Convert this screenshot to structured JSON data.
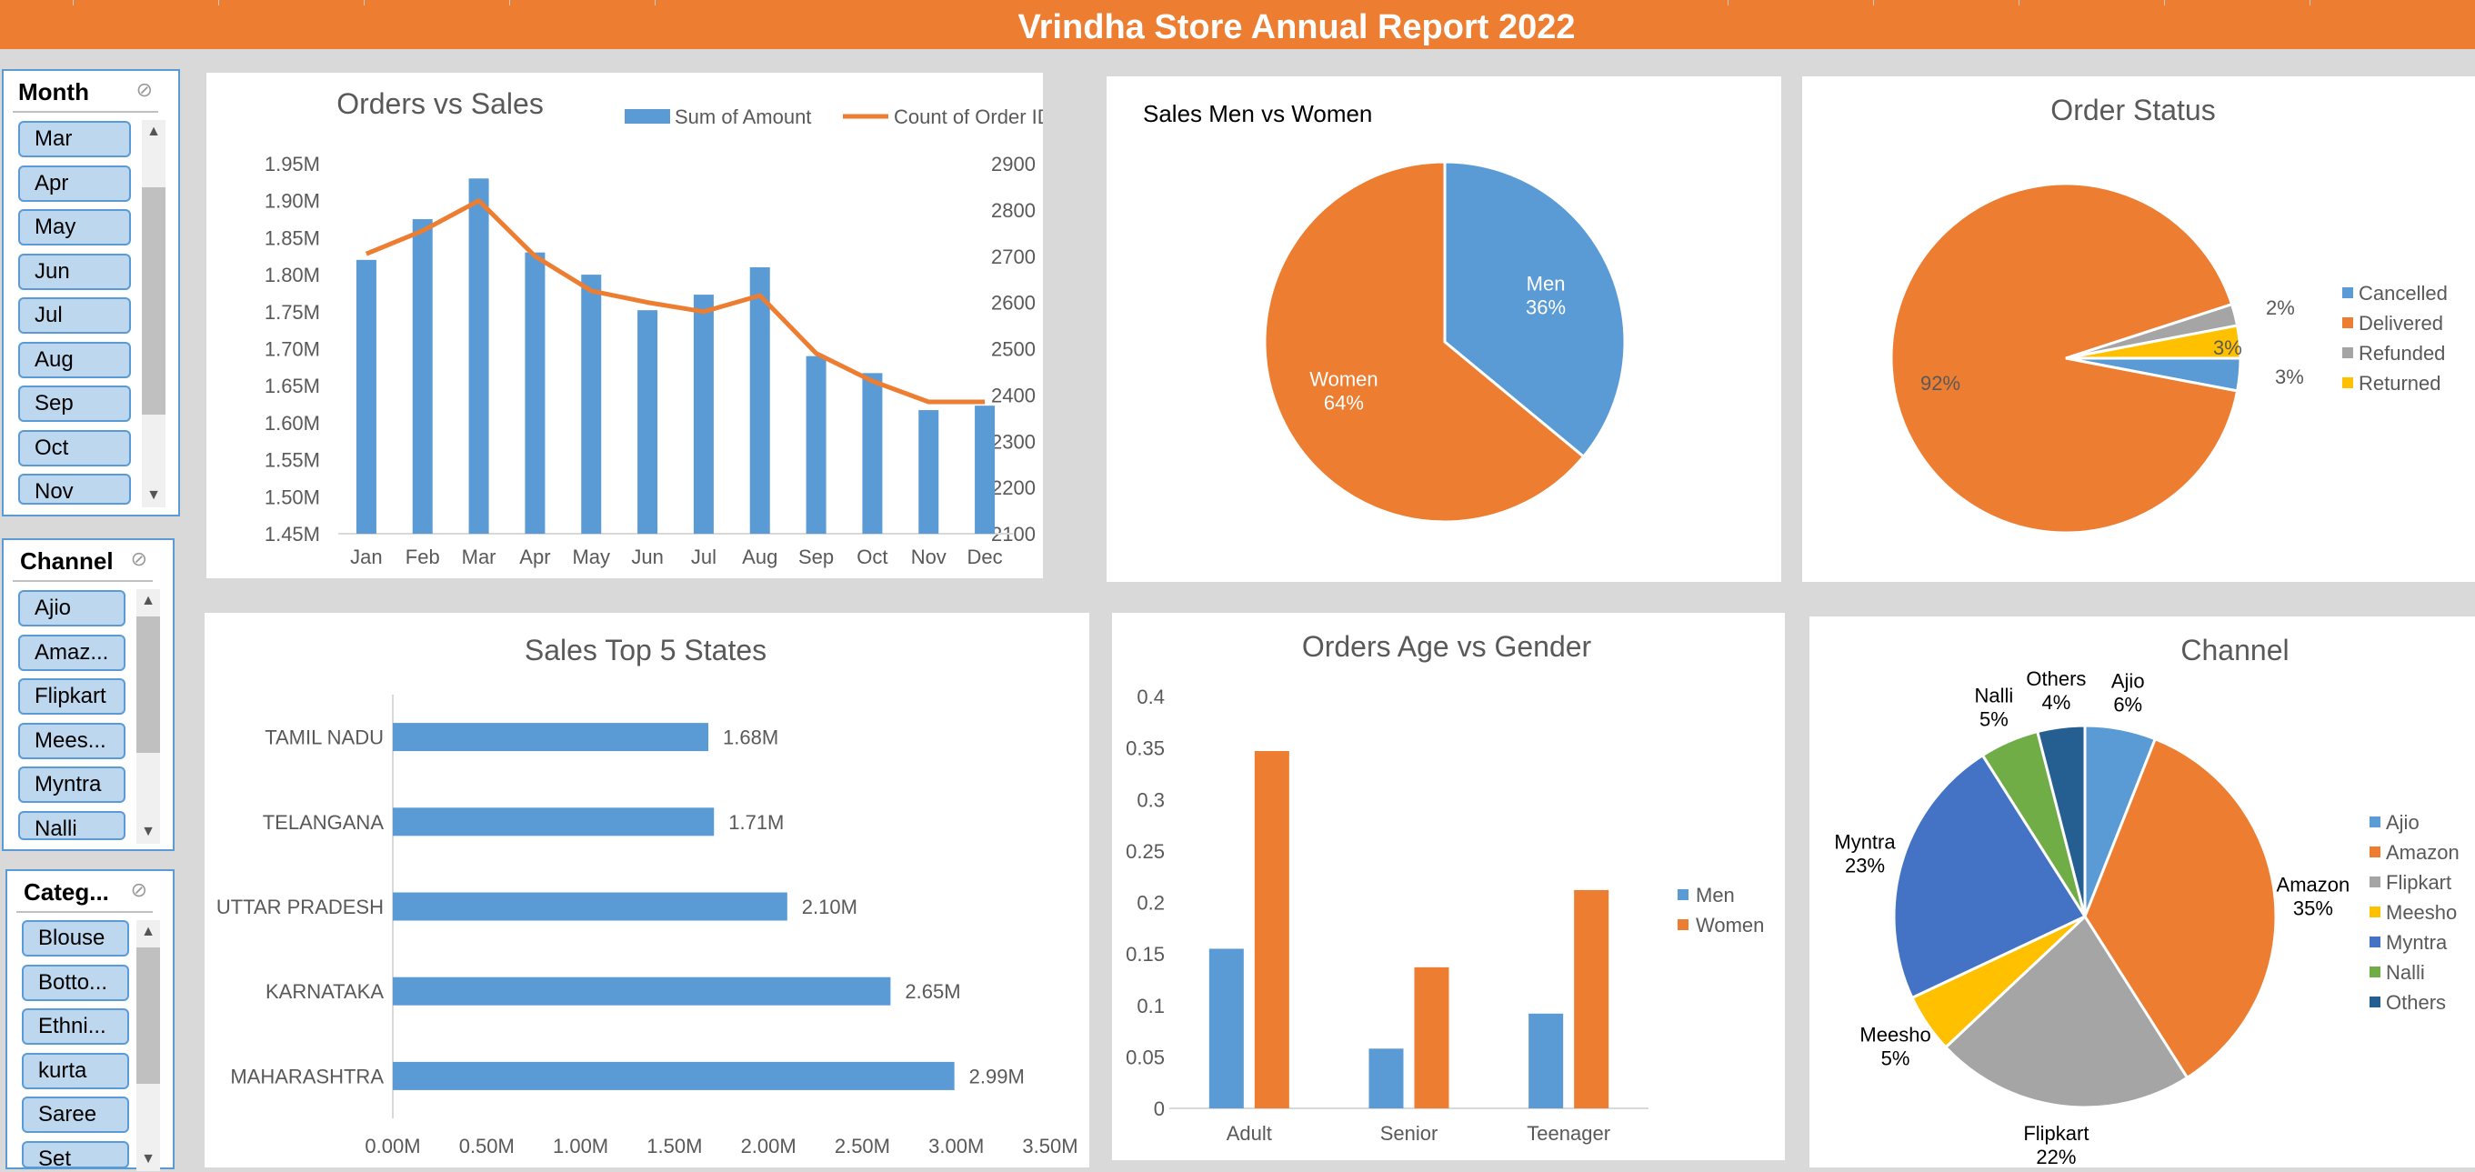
{
  "header": {
    "title": "Vrindha Store Annual Report 2022"
  },
  "slicers": {
    "month": {
      "title": "Month",
      "items": [
        "Mar",
        "Apr",
        "May",
        "Jun",
        "Jul",
        "Aug",
        "Sep",
        "Oct",
        "Nov"
      ]
    },
    "channel": {
      "title": "Channel",
      "items": [
        "Ajio",
        "Amaz...",
        "Flipkart",
        "Mees...",
        "Myntra",
        "Nalli"
      ]
    },
    "category": {
      "title": "Categ...",
      "items": [
        "Blouse",
        "Botto...",
        "Ethni...",
        "kurta",
        "Saree",
        "Set"
      ]
    }
  },
  "colors": {
    "blue": "#5b9bd5",
    "orange": "#ed7d31",
    "gray": "#a5a5a5",
    "yellow": "#ffc000",
    "darkblue": "#4472c4",
    "green": "#70ad47",
    "navy": "#255e91",
    "header": "#ed7d31",
    "slicer_button": "#bdd7ee"
  },
  "chart_data": [
    {
      "type": "bar",
      "title": "Orders vs Sales",
      "categories": [
        "Jan",
        "Feb",
        "Mar",
        "Apr",
        "May",
        "Jun",
        "Jul",
        "Aug",
        "Sep",
        "Oct",
        "Nov",
        "Dec"
      ],
      "series": [
        {
          "name": "Sum of Amount",
          "type": "bar",
          "axis": "left",
          "values": [
            1820000,
            1875000,
            1930000,
            1830000,
            1800000,
            1752000,
            1773000,
            1810000,
            1690000,
            1667000,
            1617000,
            1623000
          ]
        },
        {
          "name": "Count of Order ID",
          "type": "line",
          "axis": "right",
          "values": [
            2705,
            2755,
            2820,
            2700,
            2625,
            2600,
            2580,
            2615,
            2490,
            2430,
            2385,
            2385
          ]
        }
      ],
      "y_left_ticks": [
        "1.45M",
        "1.50M",
        "1.55M",
        "1.60M",
        "1.65M",
        "1.70M",
        "1.75M",
        "1.80M",
        "1.85M",
        "1.90M",
        "1.95M"
      ],
      "y_right_ticks": [
        "2100",
        "2200",
        "2300",
        "2400",
        "2500",
        "2600",
        "2700",
        "2800",
        "2900"
      ],
      "ylim_left": [
        1450000,
        1950000
      ],
      "ylim_right": [
        2100,
        2900
      ],
      "legend": "top-right"
    },
    {
      "type": "pie",
      "title": "Sales Men vs Women",
      "labels": [
        "Men",
        "Women"
      ],
      "values": [
        36,
        64
      ],
      "data_labels": [
        "36%",
        "64%"
      ]
    },
    {
      "type": "pie",
      "title": "Order Status",
      "labels": [
        "Cancelled",
        "Delivered",
        "Refunded",
        "Returned"
      ],
      "values": [
        3,
        92,
        2,
        3
      ],
      "data_labels": [
        "3%",
        "92%",
        "2%",
        "3%"
      ],
      "legend": "right"
    },
    {
      "type": "bar",
      "orientation": "horizontal",
      "title": "Sales Top 5 States",
      "categories": [
        "TAMIL NADU",
        "TELANGANA",
        "UTTAR PRADESH",
        "KARNATAKA",
        "MAHARASHTRA"
      ],
      "values": [
        1680000,
        1710000,
        2100000,
        2650000,
        2990000
      ],
      "data_labels": [
        "1.68M",
        "1.71M",
        "2.10M",
        "2.65M",
        "2.99M"
      ],
      "x_ticks": [
        "0.00M",
        "0.50M",
        "1.00M",
        "1.50M",
        "2.00M",
        "2.50M",
        "3.00M",
        "3.50M"
      ],
      "xlim": [
        0,
        3500000
      ]
    },
    {
      "type": "bar",
      "title": "Orders Age vs Gender",
      "categories": [
        "Adult",
        "Senior",
        "Teenager"
      ],
      "series": [
        {
          "name": "Men",
          "values": [
            0.155,
            0.058,
            0.092
          ]
        },
        {
          "name": "Women",
          "values": [
            0.347,
            0.137,
            0.212
          ]
        }
      ],
      "y_ticks": [
        "0",
        "0.05",
        "0.1",
        "0.15",
        "0.2",
        "0.25",
        "0.3",
        "0.35",
        "0.4"
      ],
      "ylim": [
        0,
        0.4
      ],
      "legend": "right"
    },
    {
      "type": "pie",
      "title": "Channel",
      "labels": [
        "Ajio",
        "Amazon",
        "Flipkart",
        "Meesho",
        "Myntra",
        "Nalli",
        "Others"
      ],
      "values": [
        6,
        35,
        22,
        5,
        23,
        5,
        4
      ],
      "data_labels": [
        "6%",
        "35%",
        "22%",
        "5%",
        "23%",
        "5%",
        "4%"
      ],
      "legend": "right"
    }
  ]
}
